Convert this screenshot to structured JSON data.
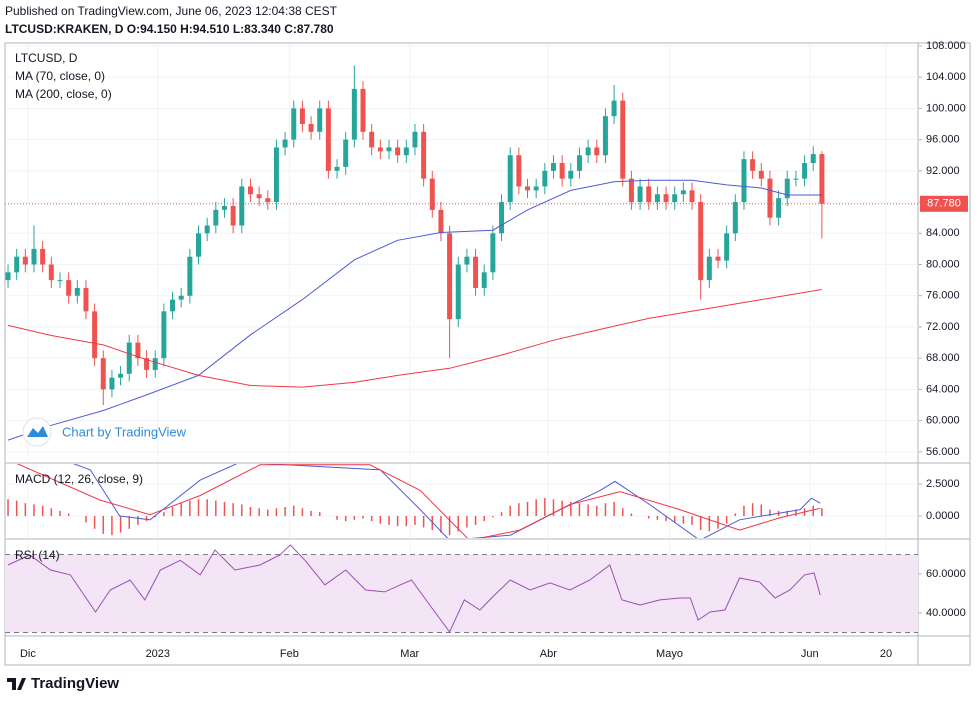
{
  "header": {
    "published": "Published on TradingView.com, June 06, 2023 12:04:38 CEST",
    "quote": "LTCUSD:KRAKEN, D O:94.150 H:94.510 L:83.340 C:87.780"
  },
  "watermark": "Chart by TradingView",
  "footer": {
    "brand": "TradingView"
  },
  "chart_data": [
    {
      "type": "candlestick",
      "title": "LTCUSD, D",
      "up_color": "#26a69a",
      "down_color": "#ef5350",
      "open": [
        78,
        79,
        81,
        80,
        82,
        80,
        78,
        78,
        76,
        77,
        74,
        68,
        64,
        65.5,
        66,
        70,
        68,
        66.5,
        68,
        74,
        75.5,
        76,
        81,
        84,
        85,
        87,
        87.5,
        85,
        90,
        89,
        88.5,
        88,
        95,
        96,
        100,
        98,
        97,
        100,
        92,
        92.5,
        96,
        102.5,
        97,
        95,
        94.5,
        95,
        94,
        95,
        97,
        91,
        87,
        84,
        73,
        80,
        81,
        77,
        79,
        84,
        88,
        94,
        90,
        89.5,
        90,
        92,
        93,
        91,
        92,
        94,
        95,
        94,
        99,
        101,
        91,
        88,
        90,
        88,
        89,
        88,
        89,
        89.5,
        88,
        78,
        81,
        80.5,
        84,
        88,
        93.5,
        92,
        91,
        86,
        88.5,
        91,
        91,
        93,
        94.15
      ],
      "high": [
        80,
        82,
        82,
        85,
        83,
        81,
        79,
        79,
        78,
        78,
        75,
        69,
        66.5,
        67,
        71,
        71,
        69,
        69,
        75,
        76.5,
        77,
        82,
        85,
        86,
        88,
        88.5,
        88.5,
        91,
        91,
        90,
        89.5,
        96,
        97,
        101,
        101,
        99,
        101,
        101,
        93.5,
        97,
        105.5,
        103.5,
        98,
        96,
        96,
        96,
        96,
        98,
        98,
        92,
        88,
        85,
        81,
        82,
        82,
        80,
        85,
        89,
        95,
        95,
        91,
        91,
        93,
        94,
        94,
        93,
        95,
        96,
        96,
        100,
        103,
        102,
        92,
        91,
        91,
        90,
        90,
        90,
        90.5,
        90.5,
        89,
        82,
        82,
        85,
        89,
        94.5,
        94.5,
        93,
        92,
        89.5,
        92,
        92,
        94,
        95.15,
        94.51
      ],
      "low": [
        77,
        78,
        79,
        79,
        79,
        77,
        77,
        75,
        75,
        73,
        67,
        62,
        63,
        64.5,
        65,
        67,
        65.5,
        65.5,
        67,
        73,
        74.5,
        75,
        80,
        83,
        84,
        86,
        84,
        84,
        88,
        87.5,
        87,
        87,
        94,
        95,
        97,
        96,
        96,
        91,
        91,
        91.5,
        95,
        96,
        94,
        93.5,
        93.5,
        93,
        93,
        94,
        90,
        86,
        83,
        68,
        72,
        79,
        76,
        76,
        78,
        83,
        87,
        89,
        88.5,
        88.5,
        89,
        91,
        90,
        90,
        91,
        93,
        93,
        93,
        98,
        90,
        87,
        87,
        87,
        87,
        87,
        87,
        88,
        87,
        75.5,
        77,
        79.5,
        79.5,
        83,
        87,
        91,
        90,
        85,
        85,
        87.5,
        90,
        90,
        92,
        83.34
      ],
      "close": [
        79,
        81,
        80,
        82,
        80,
        78,
        78,
        76,
        77,
        74,
        68,
        64,
        65.5,
        66,
        70,
        68,
        66.5,
        68,
        74,
        75.5,
        76,
        81,
        84,
        85,
        87,
        87.5,
        85,
        90,
        89,
        88.5,
        88,
        95,
        96,
        100,
        98,
        97,
        100,
        92,
        92.5,
        96,
        102.5,
        97,
        95,
        94.5,
        95,
        94,
        95,
        97,
        91,
        87,
        84,
        73,
        80,
        81,
        77,
        79,
        84,
        88,
        94,
        90,
        89.5,
        90,
        92,
        93,
        91,
        92,
        94,
        95,
        94,
        99,
        101,
        91,
        88,
        90,
        88,
        89,
        88,
        89,
        89.5,
        88,
        78,
        81,
        80.5,
        84,
        88,
        93.5,
        92,
        91,
        86,
        88.5,
        91,
        91,
        93,
        94.15,
        87.78
      ],
      "last_label": "87.780",
      "series": [
        {
          "name": "MA (70, close, 0)",
          "color": "#4f5bd5",
          "x": [
            0,
            5,
            11,
            16,
            22,
            28,
            34,
            40,
            45,
            50,
            56,
            60,
            65,
            70,
            74,
            79,
            83,
            87,
            90,
            94
          ],
          "values": [
            57.5,
            59.4,
            61.3,
            63.3,
            65.8,
            71,
            75.5,
            80.6,
            83.1,
            84.1,
            84.4,
            87,
            89.5,
            90.6,
            90.8,
            90.8,
            90.2,
            89.8,
            88.9,
            88.9
          ]
        },
        {
          "name": "MA (200, close, 0)",
          "color": "#f23645",
          "x": [
            0,
            5,
            11,
            16,
            22,
            28,
            34,
            40,
            45,
            51,
            57,
            63,
            68,
            74,
            80,
            87,
            94
          ],
          "values": [
            72.2,
            70.9,
            69.7,
            67.8,
            65.8,
            64.5,
            64.3,
            64.9,
            65.8,
            66.7,
            68.4,
            70.3,
            71.6,
            73.1,
            74.2,
            75.5,
            76.8
          ]
        }
      ],
      "ylim": [
        54.7,
        108.25
      ],
      "yticks": [
        {
          "value": 108,
          "label": "108.000"
        },
        {
          "value": 104,
          "label": "104.000"
        },
        {
          "value": 100,
          "label": "100.000"
        },
        {
          "value": 96,
          "label": "96.000"
        },
        {
          "value": 92,
          "label": "92.000"
        },
        {
          "value": 88,
          "label": "88.000"
        },
        {
          "value": 84,
          "label": "84.000"
        },
        {
          "value": 80,
          "label": "80.000"
        },
        {
          "value": 76,
          "label": "76.000"
        },
        {
          "value": 72,
          "label": "72.000"
        },
        {
          "value": 68,
          "label": "68.000"
        },
        {
          "value": 64,
          "label": "64.000"
        },
        {
          "value": 60,
          "label": "60.000"
        },
        {
          "value": 56,
          "label": "56.000"
        }
      ],
      "xlim": [
        -0.35,
        105.1
      ],
      "xticks": [
        {
          "value": 2.3,
          "label": "Dic"
        },
        {
          "value": 17.3,
          "label": "2023"
        },
        {
          "value": 32.5,
          "label": "Feb"
        },
        {
          "value": 46.4,
          "label": "Mar"
        },
        {
          "value": 62.4,
          "label": "Abr"
        },
        {
          "value": 76.4,
          "label": "Mayo"
        },
        {
          "value": 92.6,
          "label": "Jun"
        },
        {
          "value": 101.4,
          "label": "20"
        }
      ],
      "grid": true
    },
    {
      "type": "line",
      "title": "MACD (12, 26, close, 9)",
      "histogram_color": "#ef5350",
      "histogram": [
        1.3,
        1.2,
        1.0,
        0.9,
        0.8,
        0.6,
        0.4,
        0.2,
        0.0,
        -0.5,
        -1.0,
        -1.4,
        -1.5,
        -1.3,
        -1.0,
        -0.7,
        -0.4,
        -0.1,
        0.3,
        0.7,
        1.0,
        1.2,
        1.3,
        1.3,
        1.2,
        1.1,
        1.0,
        0.9,
        0.7,
        0.6,
        0.5,
        0.6,
        0.7,
        0.8,
        0.6,
        0.4,
        0.3,
        0.0,
        -0.3,
        -0.4,
        -0.3,
        -0.2,
        -0.4,
        -0.6,
        -0.7,
        -0.8,
        -0.8,
        -0.7,
        -0.9,
        -1.1,
        -1.3,
        -1.5,
        -1.2,
        -0.9,
        -0.7,
        -0.4,
        -0.1,
        0.3,
        0.8,
        1.0,
        1.1,
        1.3,
        1.4,
        1.3,
        1.2,
        1.1,
        1.0,
        0.9,
        0.8,
        1.0,
        1.1,
        0.6,
        0.2,
        0.0,
        -0.2,
        -0.3,
        -0.4,
        -0.5,
        -0.6,
        -0.7,
        -1.1,
        -1.2,
        -1.0,
        -0.6,
        0.2,
        0.8,
        1.0,
        0.9,
        0.5,
        0.4,
        0.4,
        0.5,
        0.6,
        0.8,
        0.6
      ],
      "series": [
        {
          "color": "#4f5bd5",
          "x": [
            0,
            9.5,
            12.9,
            16.4,
            22.2,
            26.8,
            43,
            47.6,
            51,
            58,
            63.8,
            68.4,
            70.1,
            74.1,
            79.9,
            84.5,
            88,
            91.5,
            92.8,
            93.8
          ],
          "values": [
            6,
            3.6,
            0,
            -0.3,
            2.8,
            4.2,
            3.6,
            0.5,
            -1.9,
            -1.5,
            0.5,
            2,
            2.7,
            0.9,
            -1.9,
            -0.3,
            0.1,
            0.5,
            1.4,
            1.0
          ]
        },
        {
          "color": "#f23645",
          "x": [
            0,
            10.6,
            16.4,
            22.2,
            29.1,
            41.8,
            47.6,
            53.3,
            59.1,
            64.9,
            70.7,
            77.6,
            84.5,
            89.1,
            93.8
          ],
          "values": [
            4.4,
            1.25,
            0.1,
            1.6,
            4,
            4,
            2,
            -1.9,
            -1.1,
            0.9,
            1.9,
            0.5,
            -1.1,
            -0.15,
            0.6
          ]
        }
      ],
      "ylim": [
        -1.72,
        4.06
      ],
      "yticks": [
        {
          "value": 2.5,
          "label": "2.5000"
        },
        {
          "value": 0,
          "label": "0.0000"
        }
      ],
      "grid": true
    },
    {
      "type": "line",
      "title": "RSI (14)",
      "bands": [
        70,
        30
      ],
      "band_fill": "#f3e5f5",
      "series": [
        {
          "color": "#9c4fb5",
          "x": [
            0,
            2.5,
            4.9,
            7.2,
            10.1,
            11.8,
            14.1,
            15.8,
            17.6,
            19.9,
            22.2,
            23.9,
            26.2,
            29.1,
            31.4,
            32.6,
            34.3,
            36.6,
            39,
            41.3,
            43.5,
            45.3,
            46.6,
            48.7,
            51,
            52.7,
            54.5,
            56.2,
            58,
            60.3,
            62.6,
            64.9,
            67.2,
            69.5,
            70.9,
            73,
            75.3,
            77.6,
            78.8,
            79.7,
            81.1,
            82.8,
            84.5,
            86.8,
            88.6,
            90.3,
            92,
            93.1,
            93.8
          ],
          "values": [
            64.6,
            69.7,
            62,
            59.5,
            40.5,
            51.8,
            56.9,
            46.7,
            62,
            67,
            59.5,
            72.3,
            62,
            64.6,
            69.7,
            74.9,
            67,
            54.4,
            62,
            51.8,
            50.8,
            54.4,
            56.9,
            44.1,
            30.3,
            46.7,
            41.5,
            49.2,
            56.9,
            51.8,
            55.4,
            51.8,
            56.9,
            64.6,
            46.7,
            44.1,
            46.7,
            47.7,
            47.7,
            36.4,
            40.5,
            41.5,
            57.9,
            55.9,
            47.7,
            51.8,
            59.5,
            60.5,
            49.2
          ]
        }
      ],
      "ylim": [
        28.2,
        77.4
      ],
      "yticks": [
        {
          "value": 60,
          "label": "60.0000"
        },
        {
          "value": 40,
          "label": "40.0000"
        }
      ],
      "grid": true
    }
  ]
}
